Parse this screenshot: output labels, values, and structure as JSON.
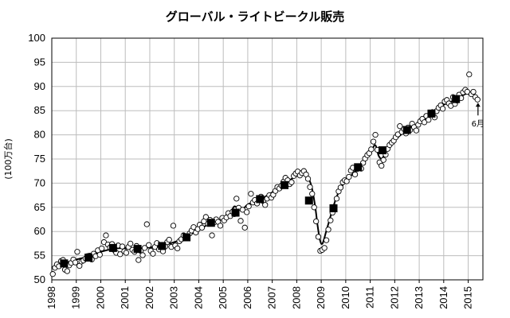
{
  "chart_data": {
    "type": "scatter",
    "title": "グローバル・ライトビークル販売",
    "ylabel": "(100万台)",
    "xlabel": "",
    "xlim": [
      1998,
      2015.6
    ],
    "ylim": [
      50,
      100
    ],
    "y_ticks": [
      50,
      55,
      60,
      65,
      70,
      75,
      80,
      85,
      90,
      95,
      100
    ],
    "x_ticks": [
      "1998",
      "1999",
      "2000",
      "2001",
      "2002",
      "2003",
      "2004",
      "2005",
      "2006",
      "2007",
      "2008",
      "2009",
      "2010",
      "2011",
      "2012",
      "2013",
      "2014",
      "2015"
    ],
    "grid": true,
    "legend": "none",
    "annotation": {
      "text": "6月",
      "x": 2015.4,
      "y": 87.3
    },
    "series": [
      {
        "marker": "open-circle",
        "points": [
          [
            1998.04,
            51.2
          ],
          [
            1998.13,
            52.5
          ],
          [
            1998.21,
            53.2
          ],
          [
            1998.29,
            52.8
          ],
          [
            1998.38,
            53.9
          ],
          [
            1998.46,
            54.1
          ],
          [
            1998.54,
            52.1
          ],
          [
            1998.63,
            51.8
          ],
          [
            1998.71,
            53.0
          ],
          [
            1998.79,
            53.5
          ],
          [
            1998.88,
            54.2
          ],
          [
            1998.96,
            53.6
          ],
          [
            1999.04,
            55.8
          ],
          [
            1999.13,
            52.9
          ],
          [
            1999.21,
            53.8
          ],
          [
            1999.29,
            54.0
          ],
          [
            1999.38,
            54.4
          ],
          [
            1999.46,
            54.9
          ],
          [
            1999.54,
            55.0
          ],
          [
            1999.63,
            54.2
          ],
          [
            1999.71,
            55.4
          ],
          [
            1999.79,
            54.9
          ],
          [
            1999.88,
            56.1
          ],
          [
            1999.96,
            55.2
          ],
          [
            2000.04,
            56.5
          ],
          [
            2000.13,
            57.8
          ],
          [
            2000.21,
            59.2
          ],
          [
            2000.29,
            57.3
          ],
          [
            2000.38,
            56.7
          ],
          [
            2000.46,
            57.4
          ],
          [
            2000.54,
            56.2
          ],
          [
            2000.63,
            55.6
          ],
          [
            2000.71,
            57.1
          ],
          [
            2000.79,
            55.3
          ],
          [
            2000.88,
            56.9
          ],
          [
            2000.96,
            55.9
          ],
          [
            2001.04,
            55.6
          ],
          [
            2001.13,
            56.8
          ],
          [
            2001.21,
            57.5
          ],
          [
            2001.29,
            56.2
          ],
          [
            2001.38,
            55.8
          ],
          [
            2001.46,
            57.0
          ],
          [
            2001.54,
            54.1
          ],
          [
            2001.63,
            56.0
          ],
          [
            2001.71,
            55.1
          ],
          [
            2001.79,
            56.6
          ],
          [
            2001.88,
            61.5
          ],
          [
            2001.96,
            57.2
          ],
          [
            2002.04,
            56.0
          ],
          [
            2002.13,
            55.4
          ],
          [
            2002.21,
            56.8
          ],
          [
            2002.29,
            57.6
          ],
          [
            2002.38,
            56.3
          ],
          [
            2002.46,
            57.0
          ],
          [
            2002.54,
            55.9
          ],
          [
            2002.63,
            56.9
          ],
          [
            2002.71,
            57.8
          ],
          [
            2002.79,
            58.3
          ],
          [
            2002.88,
            56.8
          ],
          [
            2002.96,
            61.2
          ],
          [
            2003.04,
            57.1
          ],
          [
            2003.13,
            56.5
          ],
          [
            2003.21,
            58.0
          ],
          [
            2003.29,
            58.4
          ],
          [
            2003.38,
            59.2
          ],
          [
            2003.46,
            58.6
          ],
          [
            2003.54,
            59.0
          ],
          [
            2003.63,
            59.6
          ],
          [
            2003.71,
            60.2
          ],
          [
            2003.79,
            60.9
          ],
          [
            2003.88,
            59.8
          ],
          [
            2003.96,
            60.5
          ],
          [
            2004.04,
            61.4
          ],
          [
            2004.13,
            60.8
          ],
          [
            2004.21,
            62.1
          ],
          [
            2004.29,
            63.0
          ],
          [
            2004.38,
            61.6
          ],
          [
            2004.46,
            62.4
          ],
          [
            2004.54,
            59.2
          ],
          [
            2004.63,
            61.9
          ],
          [
            2004.71,
            62.5
          ],
          [
            2004.79,
            62.0
          ],
          [
            2004.88,
            61.2
          ],
          [
            2004.96,
            62.8
          ],
          [
            2005.04,
            62.3
          ],
          [
            2005.13,
            62.9
          ],
          [
            2005.21,
            63.8
          ],
          [
            2005.29,
            63.2
          ],
          [
            2005.38,
            64.1
          ],
          [
            2005.46,
            63.6
          ],
          [
            2005.54,
            66.8
          ],
          [
            2005.63,
            64.9
          ],
          [
            2005.71,
            62.2
          ],
          [
            2005.79,
            64.5
          ],
          [
            2005.88,
            60.8
          ],
          [
            2005.96,
            64.0
          ],
          [
            2006.04,
            65.2
          ],
          [
            2006.13,
            67.8
          ],
          [
            2006.21,
            66.0
          ],
          [
            2006.29,
            66.5
          ],
          [
            2006.38,
            65.8
          ],
          [
            2006.46,
            66.9
          ],
          [
            2006.54,
            67.2
          ],
          [
            2006.63,
            66.3
          ],
          [
            2006.71,
            65.5
          ],
          [
            2006.79,
            66.8
          ],
          [
            2006.88,
            67.5
          ],
          [
            2006.96,
            67.0
          ],
          [
            2007.04,
            67.6
          ],
          [
            2007.13,
            68.4
          ],
          [
            2007.21,
            69.2
          ],
          [
            2007.29,
            68.9
          ],
          [
            2007.38,
            69.5
          ],
          [
            2007.46,
            70.3
          ],
          [
            2007.54,
            71.1
          ],
          [
            2007.63,
            70.6
          ],
          [
            2007.71,
            69.8
          ],
          [
            2007.79,
            70.2
          ],
          [
            2007.88,
            71.5
          ],
          [
            2007.96,
            72.0
          ],
          [
            2008.04,
            72.4
          ],
          [
            2008.13,
            71.6
          ],
          [
            2008.21,
            72.1
          ],
          [
            2008.29,
            72.5
          ],
          [
            2008.38,
            71.8
          ],
          [
            2008.46,
            70.9
          ],
          [
            2008.54,
            69.2
          ],
          [
            2008.63,
            67.8
          ],
          [
            2008.71,
            65.0
          ],
          [
            2008.79,
            62.1
          ],
          [
            2008.88,
            58.9
          ],
          [
            2008.96,
            56.0
          ],
          [
            2009.04,
            56.2
          ],
          [
            2009.13,
            56.6
          ],
          [
            2009.21,
            58.2
          ],
          [
            2009.29,
            60.4
          ],
          [
            2009.38,
            62.3
          ],
          [
            2009.46,
            63.9
          ],
          [
            2009.54,
            65.1
          ],
          [
            2009.63,
            66.8
          ],
          [
            2009.71,
            68.3
          ],
          [
            2009.79,
            69.1
          ],
          [
            2009.88,
            70.2
          ],
          [
            2009.96,
            70.6
          ],
          [
            2010.04,
            70.4
          ],
          [
            2010.13,
            71.3
          ],
          [
            2010.21,
            72.6
          ],
          [
            2010.29,
            73.2
          ],
          [
            2010.38,
            71.8
          ],
          [
            2010.46,
            72.9
          ],
          [
            2010.54,
            73.5
          ],
          [
            2010.63,
            73.0
          ],
          [
            2010.71,
            74.2
          ],
          [
            2010.79,
            75.1
          ],
          [
            2010.88,
            75.8
          ],
          [
            2010.96,
            76.2
          ],
          [
            2011.04,
            77.0
          ],
          [
            2011.13,
            78.6
          ],
          [
            2011.21,
            80.0
          ],
          [
            2011.29,
            76.9
          ],
          [
            2011.38,
            74.3
          ],
          [
            2011.46,
            73.6
          ],
          [
            2011.54,
            74.8
          ],
          [
            2011.63,
            75.9
          ],
          [
            2011.71,
            77.1
          ],
          [
            2011.79,
            77.9
          ],
          [
            2011.88,
            78.4
          ],
          [
            2011.96,
            78.8
          ],
          [
            2012.04,
            79.5
          ],
          [
            2012.13,
            80.1
          ],
          [
            2012.21,
            81.8
          ],
          [
            2012.29,
            80.6
          ],
          [
            2012.38,
            81.2
          ],
          [
            2012.46,
            80.3
          ],
          [
            2012.54,
            81.5
          ],
          [
            2012.63,
            81.0
          ],
          [
            2012.71,
            82.3
          ],
          [
            2012.79,
            81.6
          ],
          [
            2012.88,
            80.9
          ],
          [
            2012.96,
            82.1
          ],
          [
            2013.04,
            82.8
          ],
          [
            2013.13,
            83.3
          ],
          [
            2013.21,
            82.6
          ],
          [
            2013.29,
            83.9
          ],
          [
            2013.38,
            83.1
          ],
          [
            2013.46,
            84.2
          ],
          [
            2013.54,
            84.7
          ],
          [
            2013.63,
            83.6
          ],
          [
            2013.71,
            84.9
          ],
          [
            2013.79,
            85.6
          ],
          [
            2013.88,
            86.1
          ],
          [
            2013.96,
            85.4
          ],
          [
            2014.04,
            86.9
          ],
          [
            2014.13,
            87.2
          ],
          [
            2014.21,
            86.5
          ],
          [
            2014.29,
            86.0
          ],
          [
            2014.38,
            87.8
          ],
          [
            2014.46,
            86.4
          ],
          [
            2014.54,
            87.1
          ],
          [
            2014.63,
            88.3
          ],
          [
            2014.71,
            87.6
          ],
          [
            2014.79,
            88.8
          ],
          [
            2014.88,
            89.3
          ],
          [
            2014.96,
            88.9
          ],
          [
            2015.04,
            92.5
          ],
          [
            2015.13,
            88.4
          ],
          [
            2015.21,
            88.9
          ],
          [
            2015.29,
            87.8
          ],
          [
            2015.38,
            87.3
          ]
        ]
      },
      {
        "marker": "filled-square",
        "points": [
          [
            1998.5,
            53.4
          ],
          [
            1999.5,
            54.6
          ],
          [
            2000.5,
            56.6
          ],
          [
            2001.5,
            56.4
          ],
          [
            2002.5,
            57.0
          ],
          [
            2003.5,
            58.8
          ],
          [
            2004.5,
            61.8
          ],
          [
            2005.5,
            63.9
          ],
          [
            2006.5,
            66.7
          ],
          [
            2007.5,
            69.6
          ],
          [
            2008.5,
            66.4
          ],
          [
            2009.5,
            64.8
          ],
          [
            2010.5,
            73.3
          ],
          [
            2011.5,
            76.8
          ],
          [
            2012.5,
            81.0
          ],
          [
            2013.5,
            84.4
          ],
          [
            2014.5,
            87.4
          ]
        ]
      },
      {
        "style": "line",
        "points": [
          [
            1998.0,
            52.6
          ],
          [
            1998.5,
            53.4
          ],
          [
            1999.0,
            54.2
          ],
          [
            1999.5,
            54.8
          ],
          [
            2000.0,
            55.8
          ],
          [
            2000.5,
            56.4
          ],
          [
            2001.0,
            56.6
          ],
          [
            2001.5,
            56.5
          ],
          [
            2002.0,
            56.7
          ],
          [
            2002.5,
            57.1
          ],
          [
            2003.0,
            57.8
          ],
          [
            2003.5,
            58.9
          ],
          [
            2004.0,
            60.4
          ],
          [
            2004.5,
            61.7
          ],
          [
            2005.0,
            62.7
          ],
          [
            2005.3,
            64.0
          ],
          [
            2005.45,
            65.2
          ],
          [
            2005.6,
            64.8
          ],
          [
            2005.8,
            64.6
          ],
          [
            2006.0,
            65.6
          ],
          [
            2006.5,
            66.6
          ],
          [
            2007.0,
            68.1
          ],
          [
            2007.5,
            69.7
          ],
          [
            2007.9,
            71.3
          ],
          [
            2008.2,
            72.0
          ],
          [
            2008.45,
            71.2
          ],
          [
            2008.6,
            69.4
          ],
          [
            2008.75,
            65.3
          ],
          [
            2008.85,
            61.3
          ],
          [
            2008.95,
            58.2
          ],
          [
            2009.05,
            57.5
          ],
          [
            2009.2,
            60.0
          ],
          [
            2009.4,
            63.5
          ],
          [
            2009.6,
            66.8
          ],
          [
            2009.8,
            69.0
          ],
          [
            2010.0,
            70.4
          ],
          [
            2010.5,
            73.1
          ],
          [
            2011.0,
            76.2
          ],
          [
            2011.2,
            77.9
          ],
          [
            2011.35,
            75.6
          ],
          [
            2011.5,
            75.2
          ],
          [
            2011.7,
            77.4
          ],
          [
            2012.0,
            78.9
          ],
          [
            2012.5,
            81.0
          ],
          [
            2013.0,
            82.4
          ],
          [
            2013.5,
            84.3
          ],
          [
            2014.0,
            86.2
          ],
          [
            2014.5,
            87.3
          ],
          [
            2015.0,
            88.6
          ],
          [
            2015.4,
            87.4
          ]
        ]
      }
    ]
  }
}
